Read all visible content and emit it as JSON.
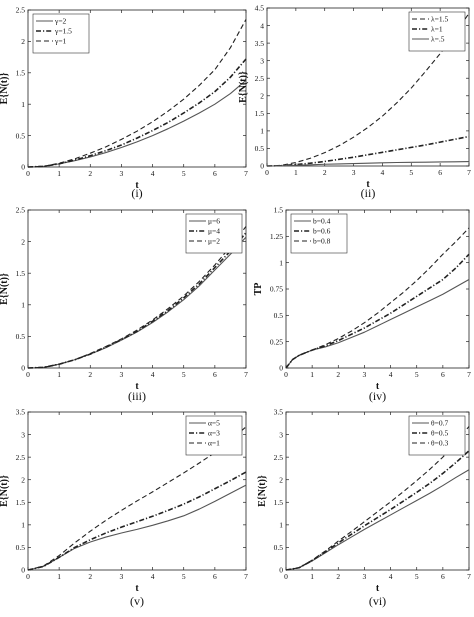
{
  "chart_data": [
    {
      "type": "line",
      "caption": "(i)",
      "xlabel": "t",
      "ylabel": "E{N(t)}",
      "xlim": [
        0,
        7
      ],
      "ylim": [
        0,
        2.5
      ],
      "xticks": [
        "0",
        "1",
        "2",
        "3",
        "4",
        "5",
        "6",
        "7"
      ],
      "yticks": [
        "0",
        "0.5",
        "1",
        "1.5",
        "2",
        "2.5"
      ],
      "legend_position": "top-left",
      "grid": false,
      "series": [
        {
          "name": "γ=2",
          "style": "solid",
          "x": [
            0,
            0.5,
            1,
            1.5,
            2,
            2.5,
            3,
            3.5,
            4,
            4.5,
            5,
            5.5,
            6,
            6.5,
            7
          ],
          "y": [
            0,
            0.01,
            0.05,
            0.1,
            0.16,
            0.23,
            0.31,
            0.4,
            0.5,
            0.61,
            0.73,
            0.86,
            1.0,
            1.17,
            1.38
          ]
        },
        {
          "name": "γ=1.5",
          "style": "dashdot",
          "x": [
            0,
            0.5,
            1,
            1.5,
            2,
            2.5,
            3,
            3.5,
            4,
            4.5,
            5,
            5.5,
            6,
            6.5,
            7
          ],
          "y": [
            0,
            0.01,
            0.05,
            0.11,
            0.18,
            0.26,
            0.35,
            0.46,
            0.58,
            0.71,
            0.86,
            1.02,
            1.2,
            1.43,
            1.72
          ]
        },
        {
          "name": "γ=1",
          "style": "dashed",
          "x": [
            0,
            0.5,
            1,
            1.5,
            2,
            2.5,
            3,
            3.5,
            4,
            4.5,
            5,
            5.5,
            6,
            6.5,
            7
          ],
          "y": [
            0,
            0.01,
            0.06,
            0.13,
            0.22,
            0.32,
            0.44,
            0.57,
            0.72,
            0.89,
            1.08,
            1.3,
            1.55,
            1.9,
            2.35
          ]
        }
      ]
    },
    {
      "type": "line",
      "caption": "(ii)",
      "xlabel": "t",
      "ylabel": "E{N(t)}",
      "xlim": [
        0,
        7
      ],
      "ylim": [
        0,
        4.5
      ],
      "xticks": [
        "0",
        "1",
        "2",
        "3",
        "4",
        "5",
        "6",
        "7"
      ],
      "yticks": [
        "0",
        "0.5",
        "1",
        "1.5",
        "2",
        "2.5",
        "3",
        "3.5",
        "4",
        "4.5"
      ],
      "legend_position": "top-right",
      "grid": false,
      "series": [
        {
          "name": "λ=1.5",
          "style": "dashed",
          "x": [
            0,
            0.5,
            1,
            1.5,
            2,
            2.5,
            3,
            3.5,
            4,
            4.5,
            5,
            5.5,
            6,
            6.5,
            7
          ],
          "y": [
            0,
            0.02,
            0.1,
            0.22,
            0.38,
            0.58,
            0.82,
            1.1,
            1.42,
            1.8,
            2.22,
            2.7,
            3.2,
            3.75,
            4.35
          ]
        },
        {
          "name": "λ=1",
          "style": "dashdot",
          "x": [
            0,
            0.5,
            1,
            1.5,
            2,
            2.5,
            3,
            3.5,
            4,
            4.5,
            5,
            5.5,
            6,
            6.5,
            7
          ],
          "y": [
            0,
            0.01,
            0.04,
            0.08,
            0.13,
            0.19,
            0.25,
            0.32,
            0.39,
            0.46,
            0.53,
            0.6,
            0.68,
            0.76,
            0.84
          ]
        },
        {
          "name": "λ=.5",
          "style": "solid",
          "x": [
            0,
            0.5,
            1,
            1.5,
            2,
            2.5,
            3,
            3.5,
            4,
            4.5,
            5,
            5.5,
            6,
            6.5,
            7
          ],
          "y": [
            0,
            0.005,
            0.02,
            0.035,
            0.05,
            0.06,
            0.07,
            0.08,
            0.09,
            0.1,
            0.105,
            0.11,
            0.115,
            0.12,
            0.125
          ]
        }
      ]
    },
    {
      "type": "line",
      "caption": "(iii)",
      "xlabel": "t",
      "ylabel": "E{N(t)}",
      "xlim": [
        0,
        7
      ],
      "ylim": [
        0,
        2.5
      ],
      "xticks": [
        "0",
        "1",
        "2",
        "3",
        "4",
        "5",
        "6",
        "7"
      ],
      "yticks": [
        "0",
        "0.5",
        "1",
        "1.5",
        "2",
        "2.5"
      ],
      "legend_position": "top-right",
      "grid": false,
      "series": [
        {
          "name": "μ=6",
          "style": "solid",
          "x": [
            0,
            0.5,
            1,
            1.5,
            2,
            2.5,
            3,
            3.5,
            4,
            4.5,
            5,
            5.5,
            6,
            6.5,
            7
          ],
          "y": [
            0,
            0.01,
            0.06,
            0.13,
            0.22,
            0.32,
            0.44,
            0.57,
            0.72,
            0.89,
            1.08,
            1.3,
            1.55,
            1.8,
            2.07
          ]
        },
        {
          "name": "μ=4",
          "style": "dashdot",
          "x": [
            0,
            0.5,
            1,
            1.5,
            2,
            2.5,
            3,
            3.5,
            4,
            4.5,
            5,
            5.5,
            6,
            6.5,
            7
          ],
          "y": [
            0,
            0.01,
            0.06,
            0.13,
            0.22,
            0.33,
            0.45,
            0.58,
            0.74,
            0.91,
            1.11,
            1.33,
            1.59,
            1.85,
            2.14
          ]
        },
        {
          "name": "μ=2",
          "style": "dashed",
          "x": [
            0,
            0.5,
            1,
            1.5,
            2,
            2.5,
            3,
            3.5,
            4,
            4.5,
            5,
            5.5,
            6,
            6.5,
            7
          ],
          "y": [
            0,
            0.01,
            0.06,
            0.13,
            0.23,
            0.34,
            0.46,
            0.6,
            0.76,
            0.94,
            1.14,
            1.37,
            1.63,
            1.92,
            2.24
          ]
        }
      ]
    },
    {
      "type": "line",
      "caption": "(iv)",
      "xlabel": "t",
      "ylabel": "TP",
      "xlim": [
        0,
        7
      ],
      "ylim": [
        0,
        1.5
      ],
      "xticks": [
        "0",
        "1",
        "2",
        "3",
        "4",
        "5",
        "6",
        "7"
      ],
      "yticks": [
        "0",
        "0.25",
        "0.5",
        "0.75",
        "1",
        "1.25",
        "1.5"
      ],
      "legend_position": "top-left",
      "grid": false,
      "series": [
        {
          "name": "b=0.4",
          "style": "solid",
          "x": [
            0,
            0.25,
            0.5,
            1,
            1.5,
            2,
            2.5,
            3,
            3.5,
            4,
            4.5,
            5,
            5.5,
            6,
            6.5,
            7
          ],
          "y": [
            0,
            0.08,
            0.12,
            0.17,
            0.2,
            0.24,
            0.29,
            0.34,
            0.4,
            0.46,
            0.52,
            0.58,
            0.64,
            0.7,
            0.77,
            0.84
          ]
        },
        {
          "name": "b=0.6",
          "style": "dashdot",
          "x": [
            0,
            0.25,
            0.5,
            1,
            1.5,
            2,
            2.5,
            3,
            3.5,
            4,
            4.5,
            5,
            5.5,
            6,
            6.5,
            7
          ],
          "y": [
            0,
            0.08,
            0.12,
            0.17,
            0.21,
            0.26,
            0.32,
            0.38,
            0.45,
            0.52,
            0.6,
            0.68,
            0.76,
            0.84,
            0.95,
            1.08
          ]
        },
        {
          "name": "b=0.8",
          "style": "dashed",
          "x": [
            0,
            0.25,
            0.5,
            1,
            1.5,
            2,
            2.5,
            3,
            3.5,
            4,
            4.5,
            5,
            5.5,
            6,
            6.5,
            7
          ],
          "y": [
            0,
            0.08,
            0.12,
            0.17,
            0.22,
            0.28,
            0.35,
            0.43,
            0.52,
            0.62,
            0.72,
            0.83,
            0.95,
            1.08,
            1.2,
            1.33
          ]
        }
      ]
    },
    {
      "type": "line",
      "caption": "(v)",
      "xlabel": "t",
      "ylabel": "E{N(t)}",
      "xlim": [
        0,
        7
      ],
      "ylim": [
        0,
        3.5
      ],
      "xticks": [
        "0",
        "1",
        "2",
        "3",
        "4",
        "5",
        "6",
        "7"
      ],
      "yticks": [
        "0",
        "0.5",
        "1",
        "1.5",
        "2",
        "2.5",
        "3",
        "3.5"
      ],
      "legend_position": "top-right",
      "grid": false,
      "series": [
        {
          "name": "α=5",
          "style": "solid",
          "x": [
            0,
            0.5,
            1,
            1.5,
            2,
            2.5,
            3,
            3.5,
            4,
            4.5,
            5,
            5.5,
            6,
            6.5,
            7
          ],
          "y": [
            0,
            0.08,
            0.28,
            0.48,
            0.62,
            0.73,
            0.82,
            0.9,
            0.99,
            1.09,
            1.2,
            1.35,
            1.52,
            1.7,
            1.88
          ]
        },
        {
          "name": "α=3",
          "style": "dashdot",
          "x": [
            0,
            0.5,
            1,
            1.5,
            2,
            2.5,
            3,
            3.5,
            4,
            4.5,
            5,
            5.5,
            6,
            6.5,
            7
          ],
          "y": [
            0,
            0.08,
            0.28,
            0.5,
            0.67,
            0.82,
            0.95,
            1.07,
            1.19,
            1.32,
            1.46,
            1.62,
            1.8,
            1.98,
            2.17
          ]
        },
        {
          "name": "α=1",
          "style": "dashed",
          "x": [
            0,
            0.5,
            1,
            1.5,
            2,
            2.5,
            3,
            3.5,
            4,
            4.5,
            5,
            5.5,
            6,
            6.5,
            7
          ],
          "y": [
            0,
            0.09,
            0.32,
            0.6,
            0.86,
            1.1,
            1.32,
            1.53,
            1.73,
            1.94,
            2.15,
            2.37,
            2.6,
            2.88,
            3.17
          ]
        }
      ]
    },
    {
      "type": "line",
      "caption": "(vi)",
      "xlabel": "t",
      "ylabel": "E{N(t)}",
      "xlim": [
        0,
        7
      ],
      "ylim": [
        0,
        3.5
      ],
      "xticks": [
        "0",
        "1",
        "2",
        "3",
        "4",
        "5",
        "6",
        "7"
      ],
      "yticks": [
        "0",
        "0.5",
        "1",
        "1.5",
        "2",
        "2.5",
        "3",
        "3.5"
      ],
      "legend_position": "top-right",
      "grid": false,
      "series": [
        {
          "name": "θ=0.7",
          "style": "solid",
          "x": [
            0,
            0.5,
            1,
            1.5,
            2,
            2.5,
            3,
            3.5,
            4,
            4.5,
            5,
            5.5,
            6,
            6.5,
            7
          ],
          "y": [
            0,
            0.05,
            0.2,
            0.38,
            0.56,
            0.73,
            0.9,
            1.06,
            1.22,
            1.38,
            1.54,
            1.7,
            1.87,
            2.05,
            2.22
          ]
        },
        {
          "name": "θ=0.5",
          "style": "dashdot",
          "x": [
            0,
            0.5,
            1,
            1.5,
            2,
            2.5,
            3,
            3.5,
            4,
            4.5,
            5,
            5.5,
            6,
            6.5,
            7
          ],
          "y": [
            0,
            0.05,
            0.21,
            0.4,
            0.6,
            0.79,
            0.98,
            1.16,
            1.34,
            1.53,
            1.72,
            1.92,
            2.14,
            2.38,
            2.64
          ]
        },
        {
          "name": "θ=0.3",
          "style": "dashed",
          "x": [
            0,
            0.5,
            1,
            1.5,
            2,
            2.5,
            3,
            3.5,
            4,
            4.5,
            5,
            5.5,
            6,
            6.5,
            7
          ],
          "y": [
            0,
            0.05,
            0.22,
            0.42,
            0.64,
            0.85,
            1.07,
            1.29,
            1.51,
            1.74,
            1.98,
            2.23,
            2.5,
            2.83,
            3.18
          ]
        }
      ]
    }
  ]
}
